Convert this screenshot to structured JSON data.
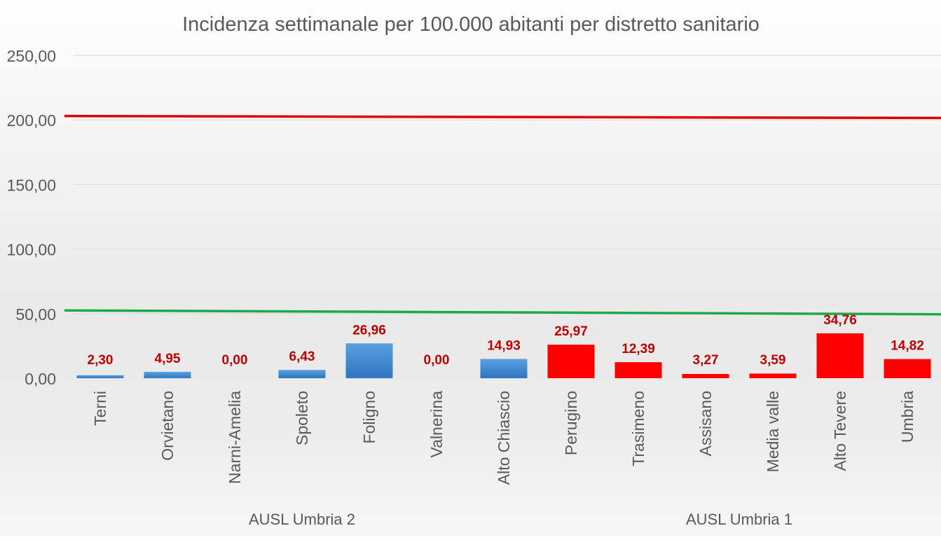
{
  "chart_data": {
    "type": "bar",
    "title": "Incidenza settimanale per 100.000 abitanti per distretto sanitario",
    "xlabel": "",
    "ylabel": "",
    "ylim": [
      0,
      250
    ],
    "yticks": [
      0,
      50,
      100,
      150,
      200,
      250
    ],
    "ytick_labels": [
      "0,00",
      "50,00",
      "100,00",
      "150,00",
      "200,00",
      "250,00"
    ],
    "grid": true,
    "categories": [
      "Terni",
      "Orvietano",
      "Narni-Amelia",
      "Spoleto",
      "Foligno",
      "Valnerina",
      "Alto Chiascio",
      "Perugino",
      "Trasimeno",
      "Assisano",
      "Media valle",
      "Alto Tevere",
      "Umbria"
    ],
    "values": [
      2.3,
      4.95,
      0.0,
      6.43,
      26.96,
      0.0,
      14.93,
      25.97,
      12.39,
      3.27,
      3.59,
      34.76,
      14.82
    ],
    "value_labels": [
      "2,30",
      "4,95",
      "0,00",
      "6,43",
      "26,96",
      "0,00",
      "14,93",
      "25,97",
      "12,39",
      "3,27",
      "3,59",
      "34,76",
      "14,82"
    ],
    "bar_colors": [
      "#3f86cf",
      "#3f86cf",
      "#3f86cf",
      "#3f86cf",
      "#3f86cf",
      "#3f86cf",
      "#3f86cf",
      "#ff0000",
      "#ff0000",
      "#ff0000",
      "#ff0000",
      "#ff0000",
      "#ff0000"
    ],
    "groups": [
      {
        "label": "AUSL Umbria 2",
        "start": 0,
        "end": 6
      },
      {
        "label": "AUSL Umbria 1",
        "start": 7,
        "end": 12
      }
    ],
    "reference_lines": [
      {
        "y_start": 203,
        "y_end": 201.5,
        "color": "#e00000"
      },
      {
        "y_start": 52.5,
        "y_end": 49.5,
        "color": "#1ea84a"
      }
    ],
    "colors": {
      "label_color": "#c00000",
      "axis_text": "#595959",
      "gridline": "#d9d9d9"
    }
  }
}
